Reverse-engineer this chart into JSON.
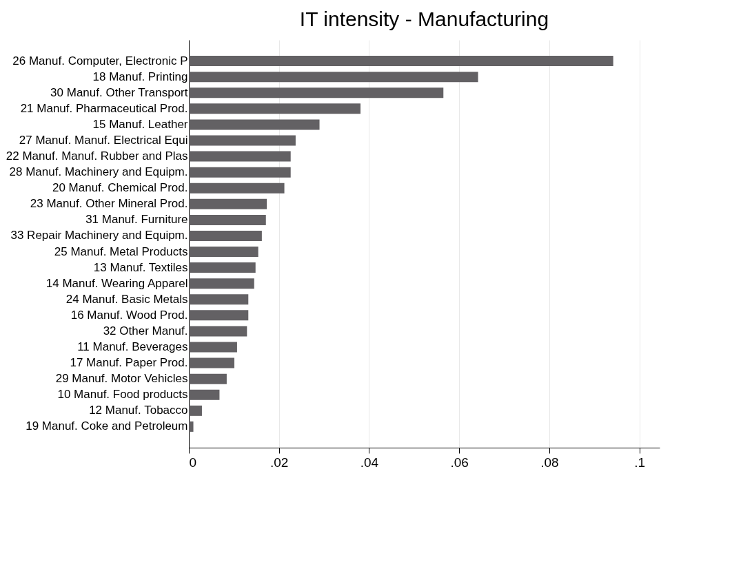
{
  "chart_data": {
    "type": "bar",
    "orientation": "horizontal",
    "title": "IT intensity - Manufacturing",
    "categories": [
      "26 Manuf. Computer, Electronic P",
      "18 Manuf. Printing",
      "30 Manuf. Other Transport",
      "21 Manuf. Pharmaceutical Prod.",
      "15 Manuf. Leather",
      "27 Manuf. Manuf. Electrical Equi",
      "22 Manuf. Manuf. Rubber and Plas",
      "28 Manuf. Machinery and Equipm.",
      "20 Manuf. Chemical Prod.",
      "23 Manuf. Other Mineral Prod.",
      "31 Manuf. Furniture",
      "33 Repair Machinery and Equipm.",
      "25 Manuf. Metal Products",
      "13 Manuf. Textiles",
      "14 Manuf. Wearing Apparel",
      "24 Manuf. Basic Metals",
      "16 Manuf. Wood Prod.",
      "32 Other Manuf.",
      "11 Manuf. Beverages",
      "17 Manuf. Paper Prod.",
      "29 Manuf. Motor Vehicles",
      "10 Manuf. Food products",
      "12 Manuf. Tobacco",
      "19 Manuf. Coke and Petroleum"
    ],
    "values": [
      0.0942,
      0.0642,
      0.0565,
      0.0381,
      0.029,
      0.0237,
      0.0226,
      0.0226,
      0.0212,
      0.0173,
      0.0171,
      0.0162,
      0.0154,
      0.0148,
      0.0145,
      0.0132,
      0.0132,
      0.0129,
      0.0107,
      0.0101,
      0.0084,
      0.0068,
      0.0029,
      0.001
    ],
    "color": "#636164",
    "xlim": [
      0,
      0.1045
    ],
    "xticks": [
      {
        "value": 0,
        "label": "0"
      },
      {
        "value": 0.02,
        "label": ".02"
      },
      {
        "value": 0.04,
        "label": ".04"
      },
      {
        "value": 0.06,
        "label": ".06"
      },
      {
        "value": 0.08,
        "label": ".08"
      },
      {
        "value": 0.1,
        "label": ".1"
      }
    ],
    "grid": "x"
  }
}
